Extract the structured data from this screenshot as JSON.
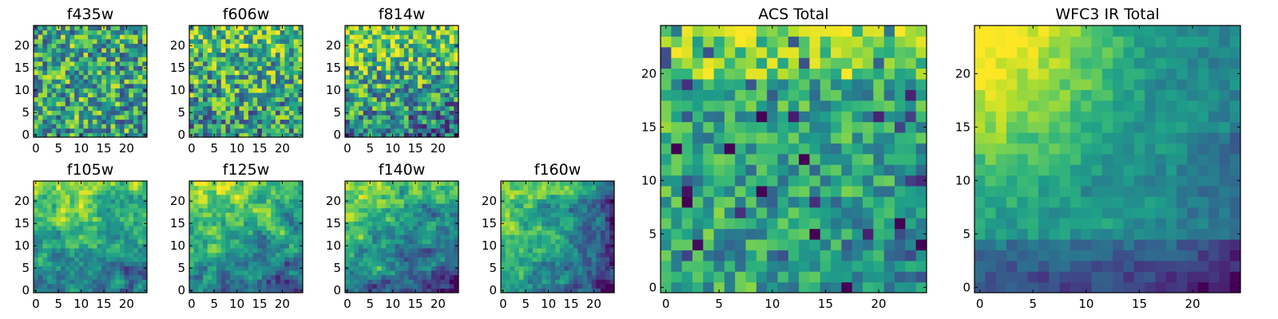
{
  "chart_data": [
    {
      "type": "heatmap",
      "title": "f435w",
      "grid_size": 25,
      "x_ticks": [
        "0",
        "5",
        "10",
        "15",
        "20"
      ],
      "y_ticks": [
        "0",
        "5",
        "10",
        "15",
        "20"
      ],
      "xlim": [
        -0.5,
        24.5
      ],
      "ylim": [
        -0.5,
        24.5
      ],
      "colormap": "viridis",
      "value_range": [
        0,
        1
      ],
      "values_description": "noisy, roughly uniform field, mean ~0.6"
    },
    {
      "type": "heatmap",
      "title": "f606w",
      "grid_size": 25,
      "x_ticks": [
        "0",
        "5",
        "10",
        "15",
        "20"
      ],
      "y_ticks": [
        "0",
        "5",
        "10",
        "15",
        "20"
      ],
      "xlim": [
        -0.5,
        24.5
      ],
      "ylim": [
        -0.5,
        24.5
      ],
      "colormap": "viridis",
      "value_range": [
        0,
        1
      ],
      "values_description": "noisy field, brighter toward top"
    },
    {
      "type": "heatmap",
      "title": "f814w",
      "grid_size": 25,
      "x_ticks": [
        "0",
        "5",
        "10",
        "15",
        "20"
      ],
      "y_ticks": [
        "0",
        "5",
        "10",
        "15",
        "20"
      ],
      "xlim": [
        -0.5,
        24.5
      ],
      "ylim": [
        -0.5,
        24.5
      ],
      "colormap": "viridis",
      "value_range": [
        0,
        1
      ],
      "values_description": "noisy field, bright at top, darker bottom-right"
    },
    {
      "type": "heatmap",
      "title": "f105w",
      "grid_size": 25,
      "x_ticks": [
        "0",
        "5",
        "10",
        "15",
        "20"
      ],
      "y_ticks": [
        "0",
        "5",
        "10",
        "15",
        "20"
      ],
      "xlim": [
        -0.5,
        24.5
      ],
      "ylim": [
        -0.5,
        24.5
      ],
      "colormap": "viridis",
      "value_range": [
        0,
        1
      ],
      "values_description": "smooth gradient, bright top-left, dark bottom"
    },
    {
      "type": "heatmap",
      "title": "f125w",
      "grid_size": 25,
      "x_ticks": [
        "0",
        "5",
        "10",
        "15",
        "20"
      ],
      "y_ticks": [
        "0",
        "5",
        "10",
        "15",
        "20"
      ],
      "xlim": [
        -0.5,
        24.5
      ],
      "ylim": [
        -0.5,
        24.5
      ],
      "colormap": "viridis",
      "value_range": [
        0,
        1
      ],
      "values_description": "smooth gradient, bright top-left, dark bottom-right"
    },
    {
      "type": "heatmap",
      "title": "f140w",
      "grid_size": 25,
      "x_ticks": [
        "0",
        "5",
        "10",
        "15",
        "20"
      ],
      "y_ticks": [
        "0",
        "5",
        "10",
        "15",
        "20"
      ],
      "xlim": [
        -0.5,
        24.5
      ],
      "ylim": [
        -0.5,
        24.5
      ],
      "colormap": "viridis",
      "value_range": [
        0,
        1
      ],
      "values_description": "smooth gradient, bright top-left, dark bottom-right"
    },
    {
      "type": "heatmap",
      "title": "f160w",
      "grid_size": 25,
      "x_ticks": [
        "0",
        "5",
        "10",
        "15",
        "20"
      ],
      "y_ticks": [
        "0",
        "5",
        "10",
        "15",
        "20"
      ],
      "xlim": [
        -0.5,
        24.5
      ],
      "ylim": [
        -0.5,
        24.5
      ],
      "colormap": "viridis",
      "value_range": [
        0,
        1
      ],
      "values_description": "gradient, bright top-left, dark right and bottom"
    },
    {
      "type": "heatmap",
      "title": "ACS Total",
      "grid_size": 25,
      "x_ticks": [
        "0",
        "5",
        "10",
        "15",
        "20"
      ],
      "y_ticks": [
        "0",
        "5",
        "10",
        "15",
        "20"
      ],
      "xlim": [
        -0.5,
        24.5
      ],
      "ylim": [
        -0.5,
        24.5
      ],
      "colormap": "viridis",
      "value_range": [
        0,
        1
      ],
      "values_description": "bright top rows, mid-green body, dark speckles"
    },
    {
      "type": "heatmap",
      "title": "WFC3 IR Total",
      "grid_size": 25,
      "x_ticks": [
        "0",
        "5",
        "10",
        "15",
        "20"
      ],
      "y_ticks": [
        "0",
        "5",
        "10",
        "15",
        "20"
      ],
      "xlim": [
        -0.5,
        24.5
      ],
      "ylim": [
        -0.5,
        24.5
      ],
      "colormap": "viridis",
      "value_range": [
        0,
        1
      ],
      "values_description": "very bright top-left corner, dark blue bottom band"
    }
  ]
}
